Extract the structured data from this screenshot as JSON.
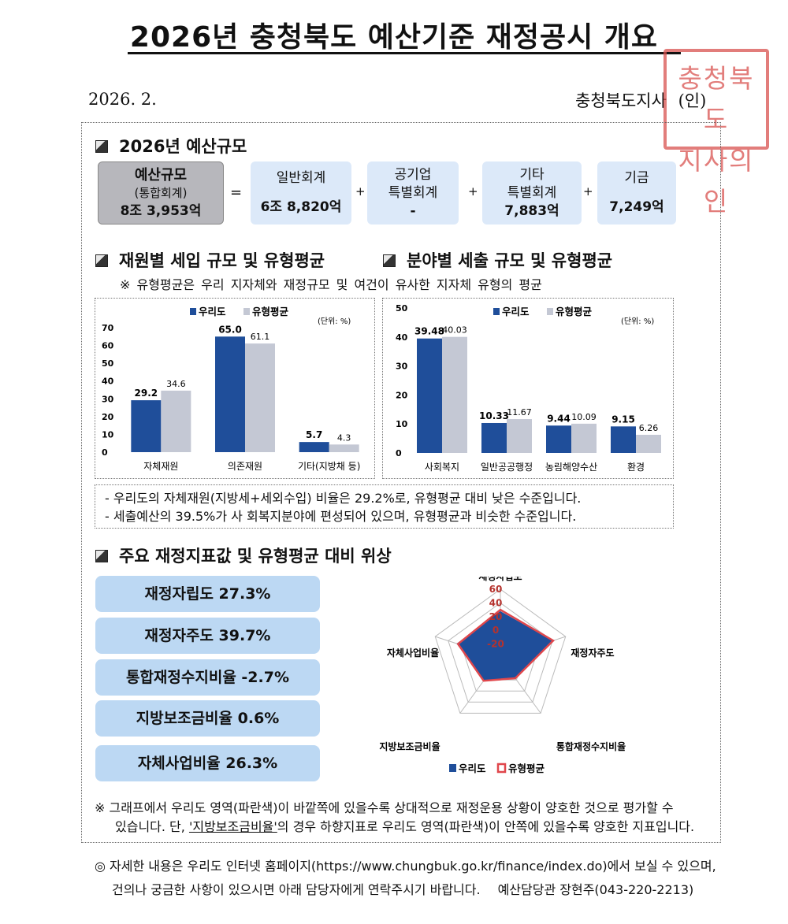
{
  "header": {
    "title": "2026년 충청북도 예산기준 재정공시 개요",
    "date": "2026. 2.",
    "issuer": "충청북도지사",
    "issuer_seal_mark": "(인)",
    "seal_text": "충청북도지사의인"
  },
  "budget": {
    "section_title": "2026년 예산규모",
    "boxes": [
      {
        "label": "예산규모",
        "sub": "(통합회계)",
        "value": "8조 3,953억"
      },
      {
        "label": "일반회계",
        "value": "6조 8,820억"
      },
      {
        "label": "공기업\n특별회계",
        "value": "-"
      },
      {
        "label": "기타\n특별회계",
        "value": "7,883억"
      },
      {
        "label": "기금",
        "value": "7,249억"
      }
    ],
    "operators": [
      "=",
      "+",
      "+",
      "+"
    ]
  },
  "revenue_section": {
    "title": "재원별 세입 규모 및 유형평균"
  },
  "expense_section": {
    "title": "분야별 세출 규모 및 유형평균"
  },
  "type_average_note": "※ 유형평균은 우리 지자체와 재정규모 및 여건이 유사한 지자체 유형의 평균",
  "chart_data": [
    {
      "type": "bar",
      "title": "",
      "unit": "(단위: %)",
      "categories": [
        "자체재원",
        "의존재원",
        "기타(지방채 등)"
      ],
      "series": [
        {
          "name": "우리도",
          "values": [
            29.2,
            65.0,
            5.7
          ],
          "color": "#1f4e9a"
        },
        {
          "name": "유형평균",
          "values": [
            34.6,
            61.1,
            4.3
          ],
          "color": "#c4c8d4"
        }
      ],
      "value_labels": [
        [
          "29.2",
          "65.0",
          "5.7"
        ],
        [
          "34.6",
          "61.1",
          "4.3"
        ]
      ],
      "ylim": [
        0,
        70
      ],
      "yticks": [
        0,
        10,
        20,
        30,
        40,
        50,
        60,
        70
      ],
      "legend": "top"
    },
    {
      "type": "bar",
      "title": "",
      "unit": "(단위: %)",
      "categories": [
        "사회복지",
        "일반공공행정",
        "농림해양수산",
        "환경"
      ],
      "series": [
        {
          "name": "우리도",
          "values": [
            39.48,
            10.33,
            9.44,
            9.15
          ],
          "color": "#1f4e9a"
        },
        {
          "name": "유형평균",
          "values": [
            40.03,
            11.67,
            10.09,
            6.26
          ],
          "color": "#c4c8d4"
        }
      ],
      "value_labels": [
        [
          "39.48",
          "10.33",
          "9.44",
          "9.15"
        ],
        [
          "40.03",
          "11.67",
          "10.09",
          "6.26"
        ]
      ],
      "ylim": [
        0,
        50
      ],
      "yticks": [
        0,
        10,
        20,
        30,
        40,
        50
      ],
      "legend": "top"
    },
    {
      "type": "radar",
      "title": "",
      "axes": [
        "재정자립도",
        "재정자주도",
        "통합재정수지비율",
        "지방보조금비율",
        "자체사업비율"
      ],
      "scale_labels": [
        "-20",
        "0",
        "20",
        "40",
        "60"
      ],
      "rlim": [
        -40,
        60
      ],
      "series": [
        {
          "name": "우리도",
          "values": [
            27.3,
            39.7,
            -2.7,
            0.6,
            26.3
          ],
          "color": "#1f4e9a"
        },
        {
          "name": "유형평균",
          "values": [
            30.0,
            41.0,
            -3.0,
            1.5,
            25.0
          ],
          "color": "#e0474c"
        }
      ],
      "legend": "bottom"
    }
  ],
  "analysis_notes": [
    "- 우리도의 자체재원(지방세+세외수입) 비율은 29.2%로, 유형평균 대비 낮은 수준입니다.",
    "- 세출예산의 39.5%가 사 회복지분야에 편성되어 있으며, 유형평균과 비슷한 수준입니다."
  ],
  "indicator_section": {
    "title": "주요 재정지표값 및 유형평균 대비 위상",
    "items": [
      "재정자립도 27.3%",
      "재정자주도 39.7%",
      "통합재정수지비율 -2.7%",
      "지방보조금비율 0.6%",
      "자체사업비율 26.3%"
    ]
  },
  "graph_note": {
    "line1": "※ 그래프에서 우리도 영역(파란색)이 바깥쪽에 있을수록 상대적으로 재정운용 상황이 양호한 것으로 평가할 수",
    "line2_pre": "있습니다. 단, ",
    "line2_underlined": "'지방보조금비율'",
    "line2_post": "의 경우 하향지표로 우리도 영역(파란색)이 안쪽에 있을수록 양호한 지표입니다."
  },
  "footer": {
    "line1": "◎ 자세한 내용은 우리도 인터넷 홈페이지(https://www.chungbuk.go.kr/finance/index.do)에서 보실 수 있으며,",
    "line2": "건의나 궁금한 사항이 있으시면 아래 담당자에게 연락주시기 바랍니다.",
    "contact": "예산담당관 장현주(043-220-2213)"
  }
}
